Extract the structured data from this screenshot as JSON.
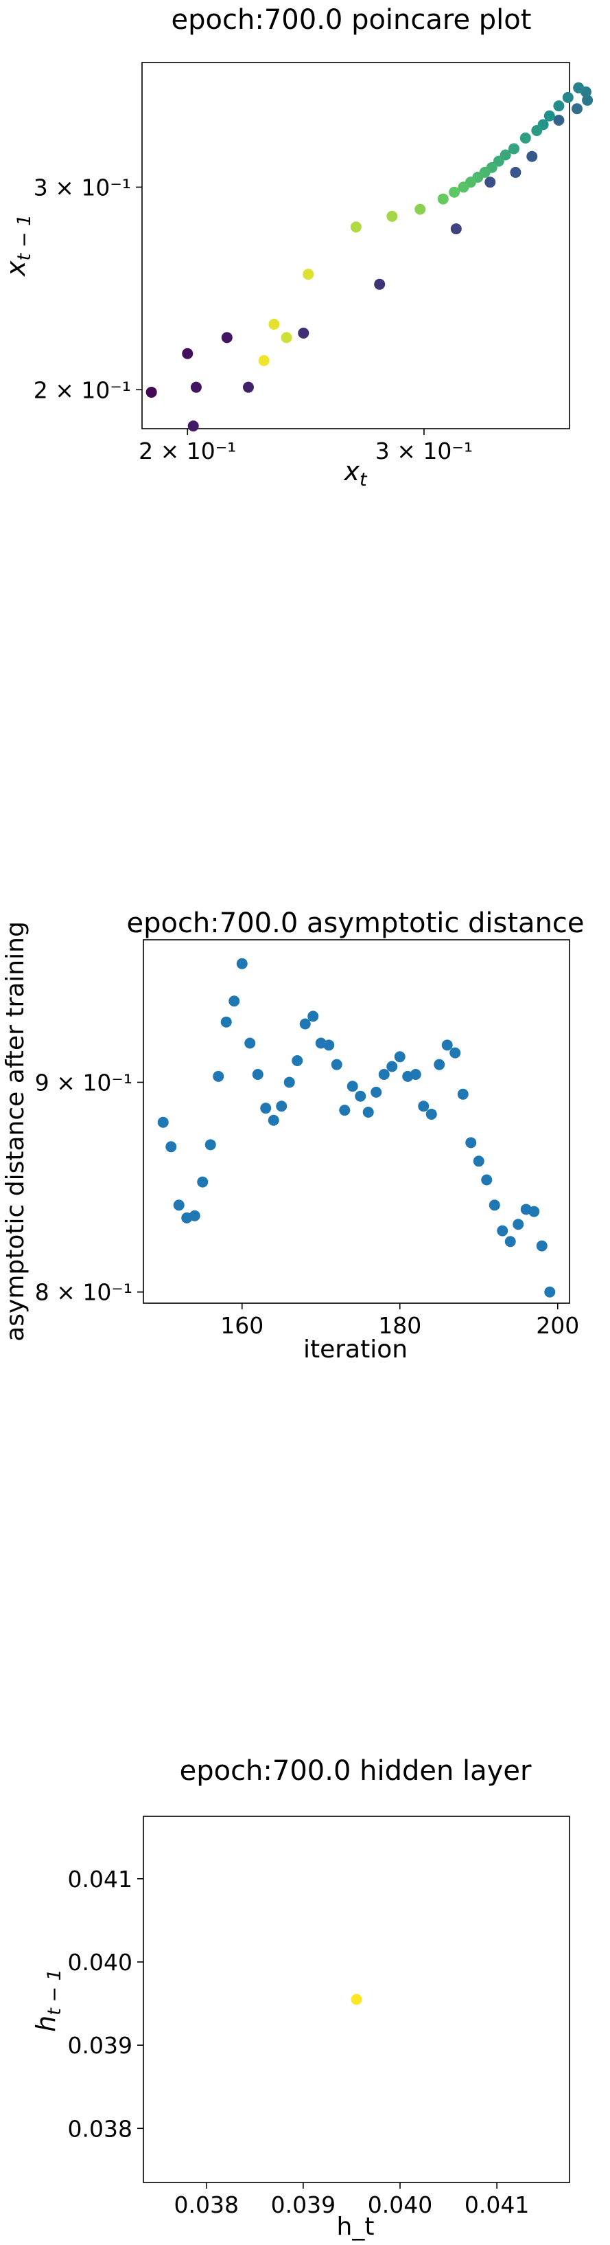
{
  "chart_data": [
    {
      "type": "scatter",
      "title": "epoch:700.0 poincare plot",
      "xlabel": "x_t",
      "ylabel": "x_{t-1}",
      "xscale": "log",
      "yscale": "log",
      "xlim": [
        0.185,
        0.385
      ],
      "ylim": [
        0.185,
        0.385
      ],
      "grid": false,
      "legend": "none",
      "colormap": "viridis",
      "xticks": [
        {
          "value": 0.2,
          "label": "2 × 10⁻¹"
        },
        {
          "value": 0.3,
          "label": "3 × 10⁻¹"
        }
      ],
      "yticks": [
        {
          "value": 0.2,
          "label": "2 × 10⁻¹"
        },
        {
          "value": 0.3,
          "label": "3 × 10⁻¹"
        }
      ],
      "points": [
        {
          "x": 0.188,
          "y": 0.199,
          "c": 0.02
        },
        {
          "x": 0.2,
          "y": 0.215,
          "c": 0.04
        },
        {
          "x": 0.203,
          "y": 0.201,
          "c": 0.06
        },
        {
          "x": 0.202,
          "y": 0.186,
          "c": 0.08
        },
        {
          "x": 0.214,
          "y": 0.222,
          "c": 0.06
        },
        {
          "x": 0.222,
          "y": 0.201,
          "c": 0.1
        },
        {
          "x": 0.244,
          "y": 0.224,
          "c": 0.14
        },
        {
          "x": 0.278,
          "y": 0.247,
          "c": 0.16
        },
        {
          "x": 0.317,
          "y": 0.276,
          "c": 0.2
        },
        {
          "x": 0.336,
          "y": 0.303,
          "c": 0.24
        },
        {
          "x": 0.351,
          "y": 0.309,
          "c": 0.26
        },
        {
          "x": 0.361,
          "y": 0.319,
          "c": 0.28
        },
        {
          "x": 0.378,
          "y": 0.343,
          "c": 0.32
        },
        {
          "x": 0.39,
          "y": 0.351,
          "c": 0.36
        },
        {
          "x": 0.397,
          "y": 0.357,
          "c": 0.4
        },
        {
          "x": 0.396,
          "y": 0.363,
          "c": 0.42
        },
        {
          "x": 0.391,
          "y": 0.366,
          "c": 0.44
        },
        {
          "x": 0.384,
          "y": 0.359,
          "c": 0.46
        },
        {
          "x": 0.378,
          "y": 0.353,
          "c": 0.48
        },
        {
          "x": 0.372,
          "y": 0.346,
          "c": 0.5
        },
        {
          "x": 0.368,
          "y": 0.34,
          "c": 0.52
        },
        {
          "x": 0.364,
          "y": 0.336,
          "c": 0.54
        },
        {
          "x": 0.357,
          "y": 0.331,
          "c": 0.56
        },
        {
          "x": 0.35,
          "y": 0.324,
          "c": 0.58
        },
        {
          "x": 0.345,
          "y": 0.32,
          "c": 0.6
        },
        {
          "x": 0.341,
          "y": 0.316,
          "c": 0.62
        },
        {
          "x": 0.337,
          "y": 0.312,
          "c": 0.64
        },
        {
          "x": 0.333,
          "y": 0.309,
          "c": 0.66
        },
        {
          "x": 0.329,
          "y": 0.306,
          "c": 0.68
        },
        {
          "x": 0.325,
          "y": 0.303,
          "c": 0.7
        },
        {
          "x": 0.321,
          "y": 0.3,
          "c": 0.72
        },
        {
          "x": 0.316,
          "y": 0.297,
          "c": 0.74
        },
        {
          "x": 0.31,
          "y": 0.293,
          "c": 0.76
        },
        {
          "x": 0.298,
          "y": 0.287,
          "c": 0.82
        },
        {
          "x": 0.284,
          "y": 0.283,
          "c": 0.86
        },
        {
          "x": 0.267,
          "y": 0.277,
          "c": 0.88
        },
        {
          "x": 0.246,
          "y": 0.252,
          "c": 0.95
        },
        {
          "x": 0.237,
          "y": 0.222,
          "c": 0.93
        },
        {
          "x": 0.232,
          "y": 0.228,
          "c": 0.96
        },
        {
          "x": 0.228,
          "y": 0.212,
          "c": 0.98
        }
      ]
    },
    {
      "type": "scatter",
      "title": "epoch:700.0 asymptotic distance",
      "xlabel": "iteration",
      "ylabel": "asymptotic distance after training",
      "yscale": "log",
      "xlim": [
        147.5,
        201.5
      ],
      "ylim": [
        0.795,
        0.975
      ],
      "grid": false,
      "legend": "none",
      "color": "#1f77b4",
      "xticks": [
        {
          "value": 160,
          "label": "160"
        },
        {
          "value": 180,
          "label": "180"
        },
        {
          "value": 200,
          "label": "200"
        }
      ],
      "yticks": [
        {
          "value": 0.8,
          "label": "8 × 10⁻¹"
        },
        {
          "value": 0.9,
          "label": "9 × 10⁻¹"
        }
      ],
      "x": [
        150,
        151,
        152,
        153,
        154,
        155,
        156,
        157,
        158,
        159,
        160,
        161,
        162,
        163,
        164,
        165,
        166,
        167,
        168,
        169,
        170,
        171,
        172,
        173,
        174,
        175,
        176,
        177,
        178,
        179,
        180,
        181,
        182,
        183,
        184,
        185,
        186,
        187,
        188,
        189,
        190,
        191,
        192,
        193,
        194,
        195,
        196,
        197,
        198,
        199
      ],
      "y": [
        0.88,
        0.868,
        0.84,
        0.834,
        0.835,
        0.851,
        0.869,
        0.903,
        0.931,
        0.942,
        0.962,
        0.92,
        0.904,
        0.887,
        0.881,
        0.888,
        0.9,
        0.911,
        0.93,
        0.934,
        0.92,
        0.919,
        0.909,
        0.886,
        0.898,
        0.893,
        0.885,
        0.895,
        0.904,
        0.908,
        0.913,
        0.903,
        0.904,
        0.888,
        0.884,
        0.909,
        0.919,
        0.915,
        0.894,
        0.87,
        0.861,
        0.852,
        0.84,
        0.828,
        0.823,
        0.831,
        0.838,
        0.837,
        0.821,
        0.8
      ]
    },
    {
      "type": "scatter",
      "title": "epoch:700.0 hidden layer",
      "xlabel": "h_t",
      "ylabel": "h_{t-1}",
      "xlim": [
        0.03735,
        0.04175
      ],
      "ylim": [
        0.03735,
        0.04175
      ],
      "grid": false,
      "legend": "none",
      "xticks": [
        {
          "value": 0.038,
          "label": "0.038"
        },
        {
          "value": 0.039,
          "label": "0.039"
        },
        {
          "value": 0.04,
          "label": "0.040"
        },
        {
          "value": 0.041,
          "label": "0.041"
        }
      ],
      "yticks": [
        {
          "value": 0.038,
          "label": "0.038"
        },
        {
          "value": 0.039,
          "label": "0.039"
        },
        {
          "value": 0.04,
          "label": "0.040"
        },
        {
          "value": 0.041,
          "label": "0.041"
        }
      ],
      "points": [
        {
          "x": 0.03955,
          "y": 0.03955,
          "color": "#fde725"
        }
      ]
    }
  ]
}
